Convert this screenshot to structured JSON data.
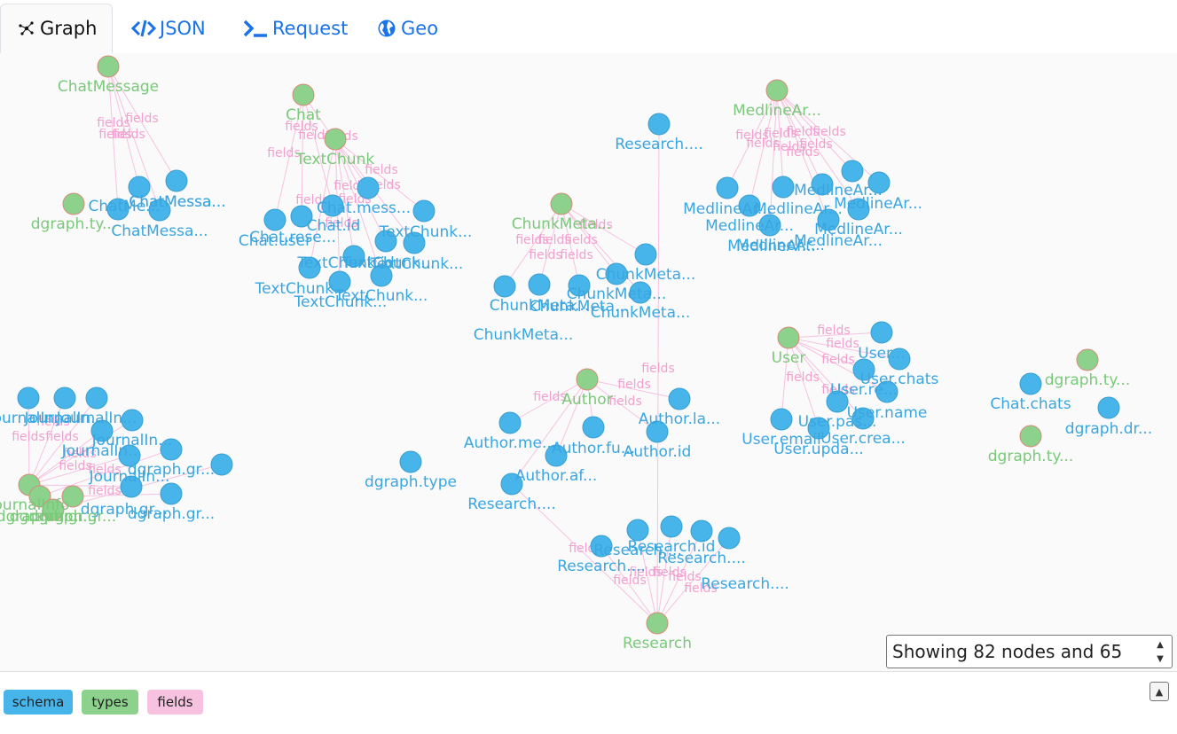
{
  "tabs": [
    {
      "label": "Graph",
      "icon": "graph-icon",
      "active": true
    },
    {
      "label": "JSON",
      "icon": "code-icon",
      "active": false
    },
    {
      "label": "Request",
      "icon": "terminal-icon",
      "active": false
    },
    {
      "label": "Geo",
      "icon": "globe-icon",
      "active": false
    }
  ],
  "colors": {
    "schema": "#47b5ea",
    "types": "#8cd18c",
    "fields": "#f6c2e0"
  },
  "graph": {
    "type_nodes": [
      "ChatMessage",
      "Chat",
      "TextChunk",
      "ChunkMeta...",
      "MedlineAr...",
      "User",
      "Author",
      "Research",
      "JournalInfo",
      "dgraph.ty...",
      "dgraph.ty...",
      "dgraph.ty...",
      "dgraph.gr...",
      "dgraph.gr...",
      "dgraph.gr..."
    ],
    "schema_nodes": [
      "ChatMessa...",
      "ChatMessa...",
      "ChatMe...",
      "ChatMessa...",
      "Chat.id",
      "Chat.mess...",
      "Chat.rese...",
      "Chat.user",
      "TextChunk...",
      "TextChunk...",
      "TextChunk...",
      "TextChunk.id",
      "TextChunk...",
      "TextChunk...",
      "TextChunk...",
      "ChunkMeta...",
      "ChunkMeta...",
      "ChunkMeta...",
      "ChunkMeta...",
      "ChunkMeta...",
      "ChunkMeta...",
      "Research....",
      "MedlineAr...",
      "MedlineAr...",
      "MedlineAr...",
      "MedlineAr...",
      "MedlineAr...",
      "MedlineAr...",
      "MedlineAr...",
      "MedlineAr...",
      "MedlineAr...",
      "User.chats",
      "User.name",
      "User.re...",
      "User.crea...",
      "User.pas...",
      "User.email",
      "User.upda...",
      "User...",
      "Author.me...",
      "Author.fu...",
      "Author.id",
      "Author.la...",
      "Author.af...",
      "Research....",
      "dgraph.type",
      "Chat.chats",
      "dgraph.dr...",
      "Research....",
      "Research....",
      "Research.id",
      "Research....",
      "Research....",
      "JournalIn...",
      "JournalIn...",
      "JournalIn...",
      "JournalIn...",
      "JournalIn...",
      "JournalIn...",
      "dgraph.gr...",
      "dgraph.gr...",
      "dgraph.gr..."
    ],
    "edge_label": "fields"
  },
  "stats_text": "Showing 82 nodes and 65",
  "legend": [
    {
      "label": "schema",
      "color": "#47b5ea"
    },
    {
      "label": "types",
      "color": "#8cd18c"
    },
    {
      "label": "fields",
      "color": "#f6c2e0"
    }
  ]
}
